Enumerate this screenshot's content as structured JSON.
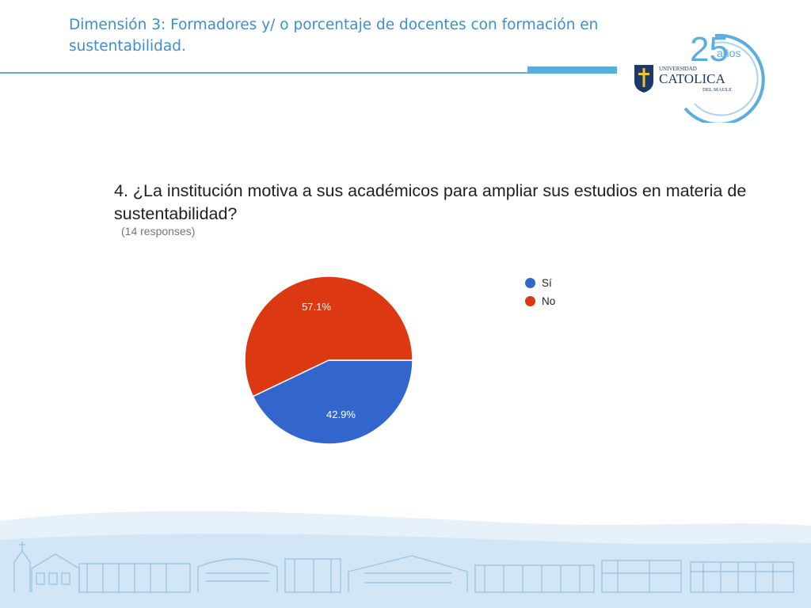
{
  "slide": {
    "title": "Dimensión 3: Formadores y/ o porcentaje de docentes con formación en sustentabilidad."
  },
  "logo": {
    "anniversary_number": "25",
    "anniversary_word": "años",
    "university_word": "UNIVERSIDAD",
    "name": "CATOLICA",
    "region": "DEL MAULE",
    "colors": {
      "navy": "#1b3a6b",
      "sky": "#5aaddf"
    }
  },
  "chart_data": {
    "type": "pie",
    "title": "4. ¿La institución motiva a sus académicos para ampliar sus estudios en materia de sustentabilidad?",
    "subtitle": "(14 responses)",
    "categories": [
      "Sí",
      "No"
    ],
    "values": [
      42.9,
      57.1
    ],
    "labels": [
      "42.9%",
      "57.1%"
    ],
    "colors": [
      "#3366cc",
      "#dc3912"
    ],
    "legend_position": "right"
  }
}
